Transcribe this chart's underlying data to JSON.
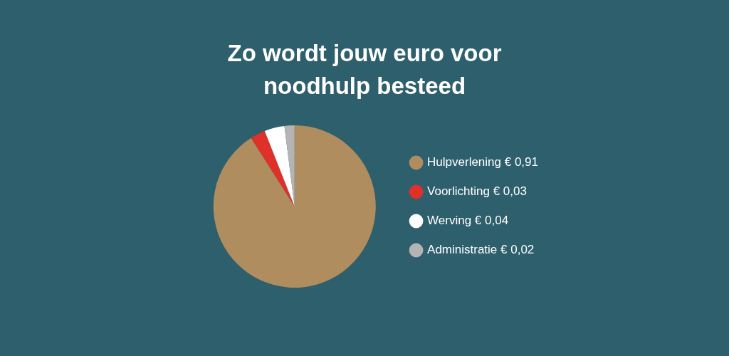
{
  "chart_data": {
    "type": "pie",
    "title": "Zo wordt jouw euro voor noodhulp besteed",
    "categories": [
      "Hulpverlening",
      "Voorlichting",
      "Werving",
      "Administratie"
    ],
    "values": [
      0.91,
      0.03,
      0.04,
      0.02
    ],
    "value_labels": [
      "€ 0,91",
      "€ 0,03",
      "€ 0,04",
      "€ 0,02"
    ],
    "colors": [
      "#b08d5e",
      "#e0302a",
      "#ffffff",
      "#b4b4b4"
    ],
    "legend": "right"
  }
}
